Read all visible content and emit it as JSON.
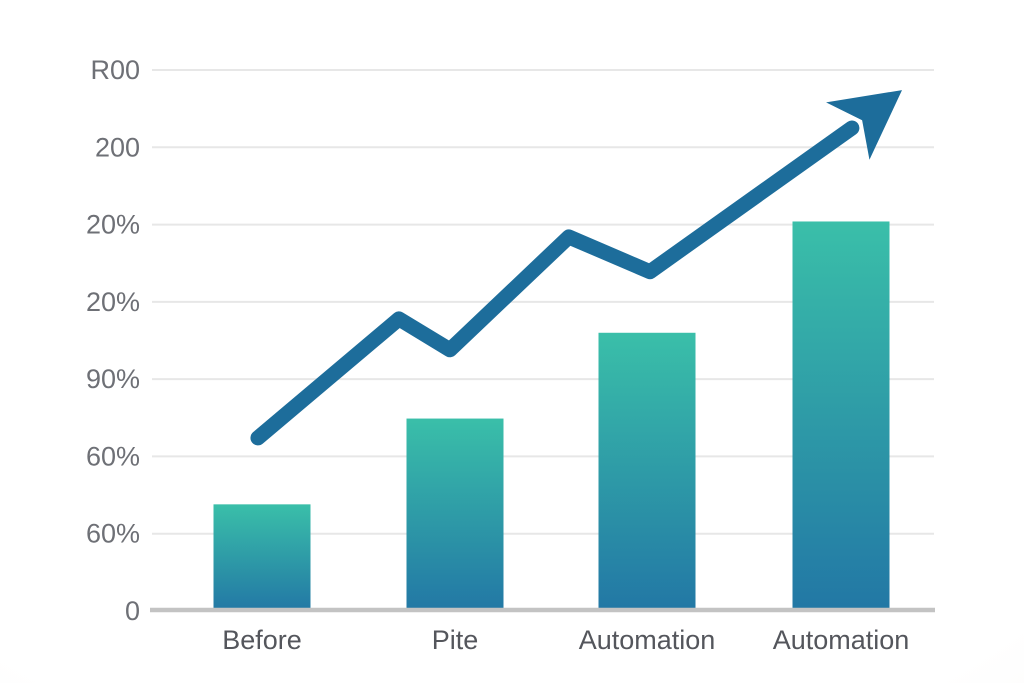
{
  "chart_data": {
    "type": "bar",
    "title": "",
    "subtitle": "",
    "categories": [
      "Before",
      "Pite",
      "Automation",
      "Automation"
    ],
    "values": [
      1.38,
      2.49,
      3.6,
      5.04
    ],
    "value_units": "y-gridline steps (8 evenly spaced ticks; tick text is garbled)",
    "y_tick_labels_top_to_bottom": [
      "R00",
      "200",
      "20%",
      "20%",
      "90%",
      "60%",
      "60%",
      "0"
    ],
    "xlabel": "",
    "ylabel": "",
    "grid": true,
    "legend": false,
    "overlay_line": {
      "type": "line",
      "name": "upward-trend-arrow",
      "arrow": true,
      "points": [
        {
          "fx": 0.1355,
          "y_steps": 2.24
        },
        {
          "fx": 0.3158,
          "y_steps": 3.78
        },
        {
          "fx": 0.381,
          "y_steps": 3.38
        },
        {
          "fx": 0.533,
          "y_steps": 4.84
        },
        {
          "fx": 0.6368,
          "y_steps": 4.39
        },
        {
          "fx": 0.895,
          "y_steps": 6.25
        }
      ],
      "arrow_tip": {
        "fx": 0.9591,
        "y_steps": 6.74
      }
    }
  },
  "style": {
    "bar_gradient_top": "#3abfa9",
    "bar_gradient_bottom": "#2277a5",
    "trend_line_color": "#1d6d9b",
    "gridline_color": "#e7e7e7",
    "axis_line_color": "#c3c3c3",
    "y_tick_text_color": "#6e7076",
    "category_text_color": "#54565c",
    "background_color": "#ffffff"
  }
}
